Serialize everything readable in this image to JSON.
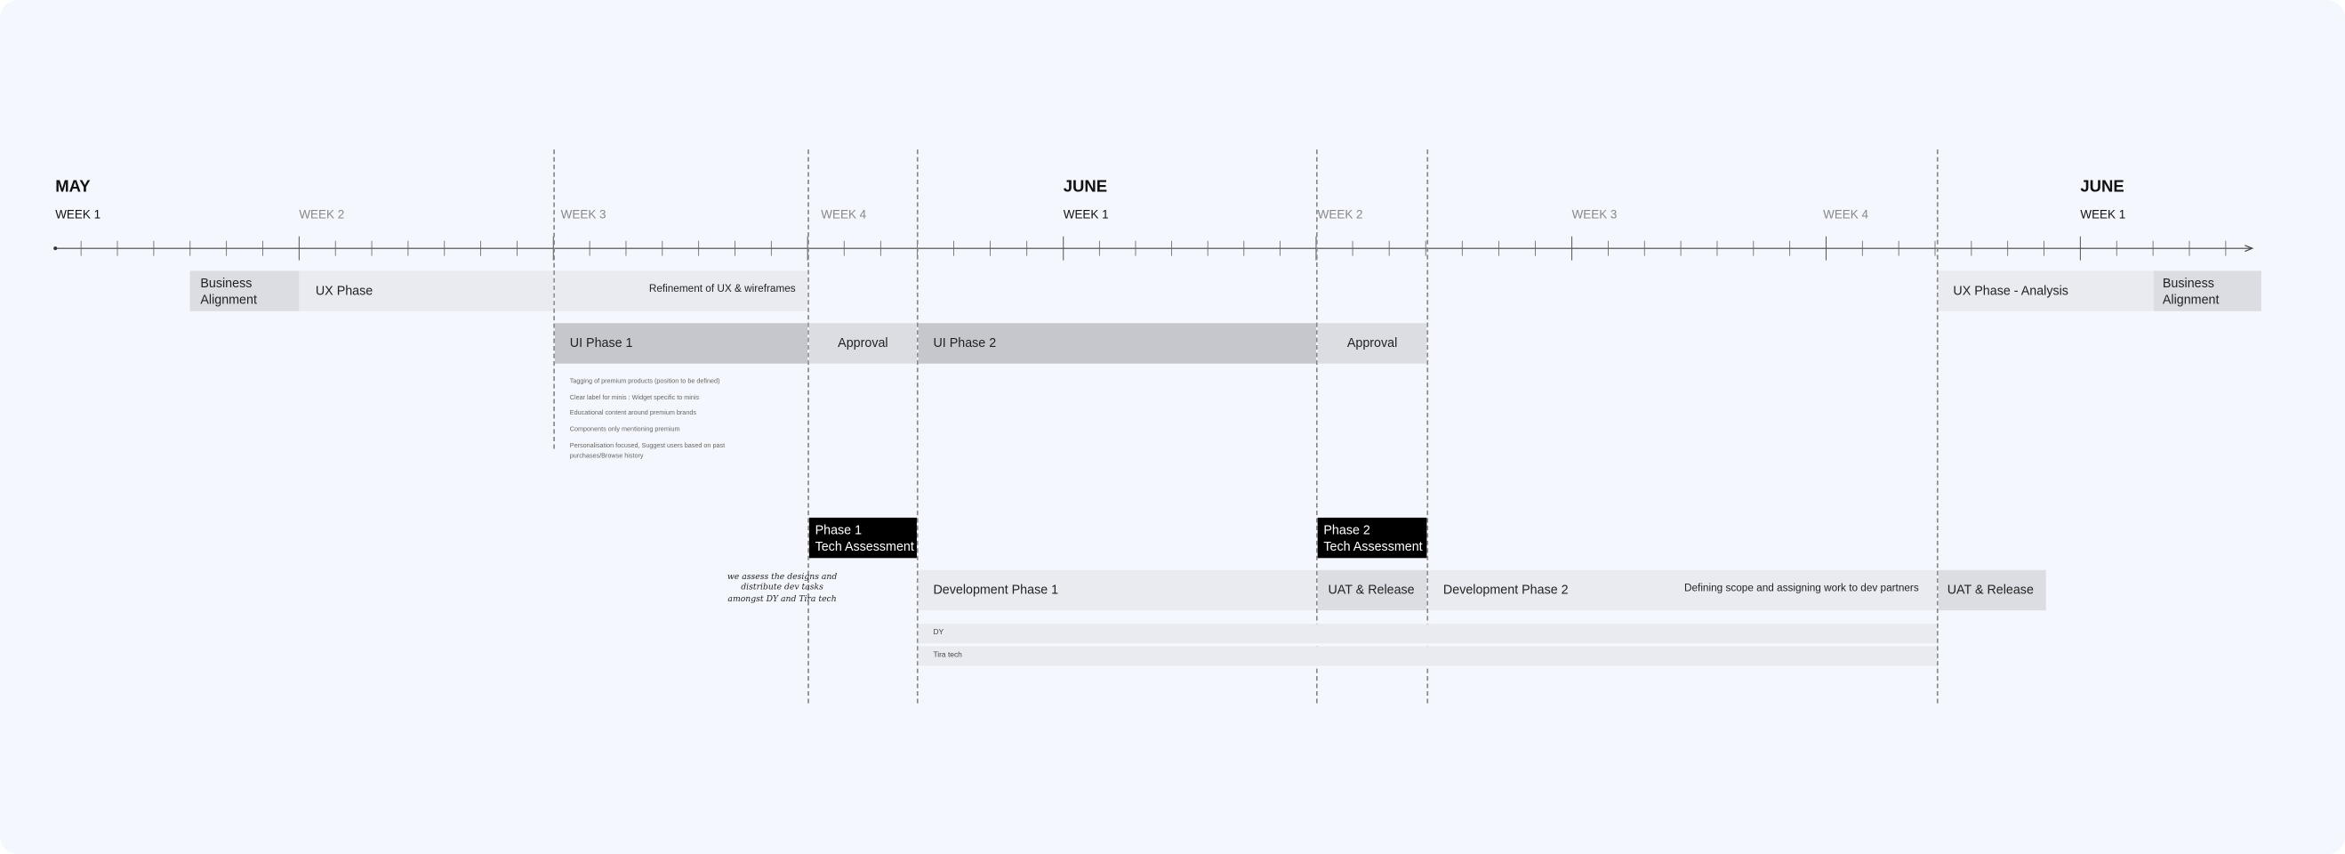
{
  "timeline": {
    "months": [
      {
        "label": "MAY"
      },
      {
        "label": "JUNE"
      },
      {
        "label": "JUNE"
      }
    ],
    "weeks": [
      {
        "label": "WEEK 1",
        "muted": false
      },
      {
        "label": "WEEK 2",
        "muted": true
      },
      {
        "label": "WEEK 3",
        "muted": true
      },
      {
        "label": "WEEK 4",
        "muted": true
      },
      {
        "label": "WEEK 1",
        "muted": false
      },
      {
        "label": "WEEK 2",
        "muted": true
      },
      {
        "label": "WEEK 3",
        "muted": true
      },
      {
        "label": "WEEK 4",
        "muted": true
      },
      {
        "label": "WEEK 1",
        "muted": false
      }
    ]
  },
  "tracks": {
    "ux": {
      "business_alignment_1": "Business Alignment",
      "ux_phase": "UX Phase",
      "refinement": "Refinement of  UX & wireframes",
      "ux_analysis": "UX Phase - Analysis",
      "business_alignment_2": "Business Alignment"
    },
    "ui": {
      "ui_phase_1": "UI Phase 1",
      "approval_1": "Approval",
      "ui_phase_2": "UI Phase 2",
      "approval_2": "Approval"
    },
    "ui_notes": [
      "Tagging of premium products (position to be defined)",
      "Clear label for minis : Widget specific to minis",
      "Educational content around premium brands",
      "Components only mentioning premium",
      "Personalisation focused, Suggest users based on past purchases/Browse history"
    ],
    "tech": {
      "phase_1_line1": "Phase 1",
      "phase_1_line2": "Tech Assessment",
      "phase_2_line1": "Phase 2",
      "phase_2_line2": "Tech Assessment",
      "handwritten_note": "we assess the designs and distribute dev tasks amongst DY and Tira tech"
    },
    "dev": {
      "dev_phase_1": "Development Phase 1",
      "uat_1": "UAT & Release",
      "dev_phase_2": "Development Phase 2",
      "dev_phase_2_note": "Defining scope and assigning work to dev partners",
      "uat_2": "UAT & Release",
      "partner_1": "DY",
      "partner_2": "Tira tech"
    }
  },
  "colors": {
    "background": "#f4f7fd",
    "light": "#e9ebf1",
    "mid": "#dcdde3",
    "dark": "#c6c7cc",
    "milestone": "#000000"
  }
}
